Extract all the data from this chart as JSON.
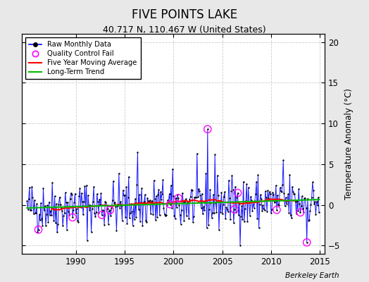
{
  "title": "FIVE POINTS LAKE",
  "subtitle": "40.717 N, 110.467 W (United States)",
  "ylabel": "Temperature Anomaly (°C)",
  "watermark": "Berkeley Earth",
  "xlim": [
    1984.5,
    2015.5
  ],
  "ylim": [
    -6,
    21
  ],
  "yticks": [
    -5,
    0,
    5,
    10,
    15,
    20
  ],
  "xticks": [
    1990,
    1995,
    2000,
    2005,
    2010,
    2015
  ],
  "raw_color": "#0000ff",
  "dot_color": "#000000",
  "qc_color": "#ff00ff",
  "ma_color": "#ff0000",
  "trend_color": "#00bb00",
  "plot_bg_color": "#ffffff",
  "fig_bg_color": "#e8e8e8",
  "title_fontsize": 12,
  "subtitle_fontsize": 9,
  "axis_fontsize": 8.5,
  "seed": 42
}
